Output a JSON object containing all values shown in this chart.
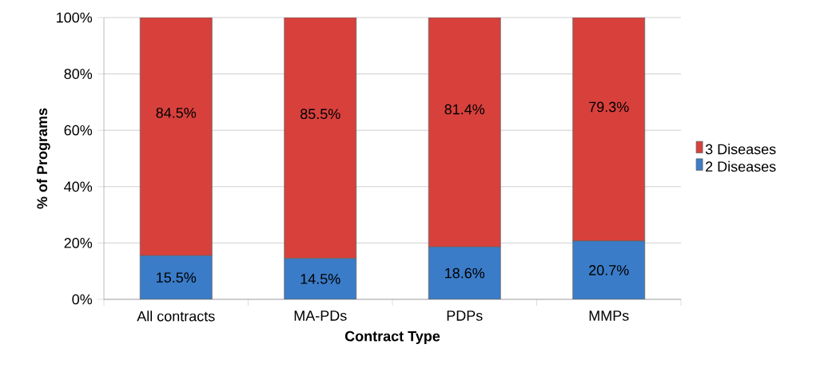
{
  "chart_data": {
    "type": "bar",
    "stacked": true,
    "xlabel": "Contract Type",
    "ylabel": "% of Programs",
    "categories": [
      "All contracts",
      "MA-PDs",
      "PDPs",
      "MMPs"
    ],
    "series": [
      {
        "name": "2 Diseases",
        "color": "#3a7cc8",
        "values": [
          15.5,
          14.5,
          18.6,
          20.7
        ],
        "value_labels": [
          "15.5%",
          "14.5%",
          "18.6%",
          "20.7%"
        ]
      },
      {
        "name": "3 Diseases",
        "color": "#d8403c",
        "values": [
          84.5,
          85.5,
          81.4,
          79.3
        ],
        "value_labels": [
          "84.5%",
          "85.5%",
          "81.4%",
          "79.3%"
        ]
      }
    ],
    "ylim": [
      0,
      100
    ],
    "yticks": [
      {
        "value": 0,
        "label": "0%"
      },
      {
        "value": 20,
        "label": "20%"
      },
      {
        "value": 40,
        "label": "40%"
      },
      {
        "value": 60,
        "label": "60%"
      },
      {
        "value": 80,
        "label": "80%"
      },
      {
        "value": 100,
        "label": "100%"
      }
    ],
    "grid": "y",
    "legend": "right"
  }
}
